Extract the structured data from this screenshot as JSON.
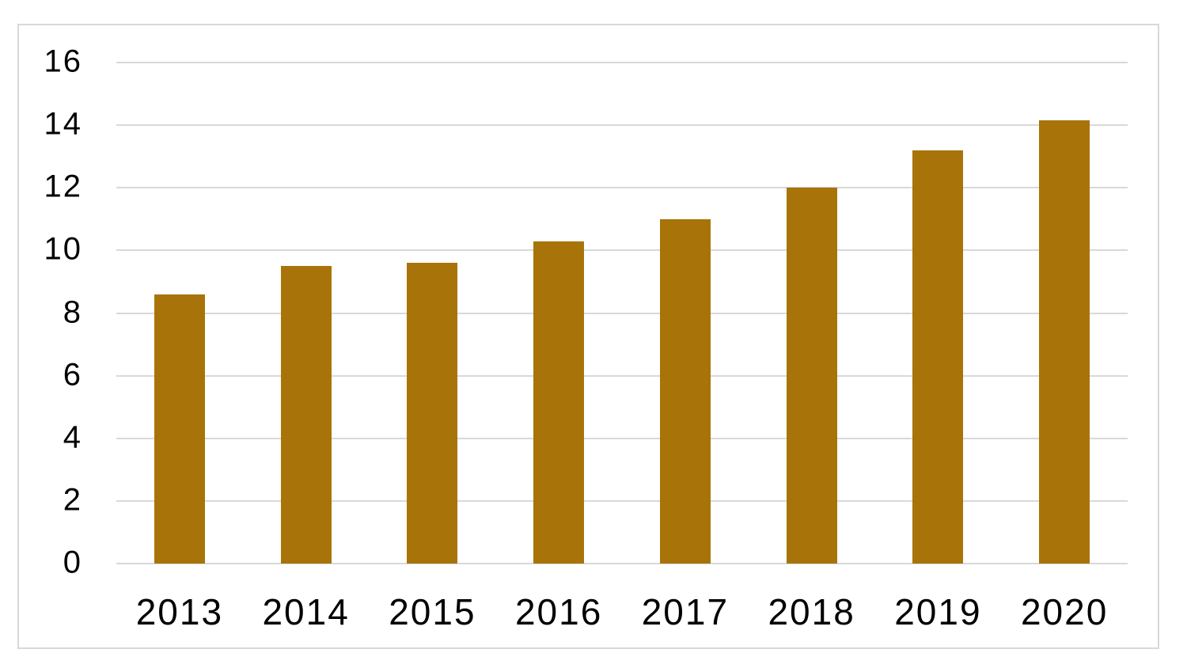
{
  "chart_data": {
    "type": "bar",
    "title": "",
    "xlabel": "",
    "ylabel": "",
    "categories": [
      "2013",
      "2014",
      "2015",
      "2016",
      "2017",
      "2018",
      "2019",
      "2020"
    ],
    "values": [
      8.6,
      9.5,
      9.6,
      10.3,
      11.0,
      12.0,
      13.2,
      14.15
    ],
    "ylim": [
      0,
      16
    ],
    "yticks": [
      0,
      2,
      4,
      6,
      8,
      10,
      12,
      14,
      16
    ],
    "ytick_labels": [
      "0",
      "2",
      "4",
      "6",
      "8",
      "10",
      "12",
      "14",
      "16"
    ],
    "grid": true,
    "legend": false,
    "legend_position": "none",
    "series_name": "",
    "bar_color": "#A87409",
    "gridline_color": "#D9D9D9",
    "border_color": "#D9D9D9",
    "text_color": "#000000",
    "background_color": "#FFFFFF"
  }
}
